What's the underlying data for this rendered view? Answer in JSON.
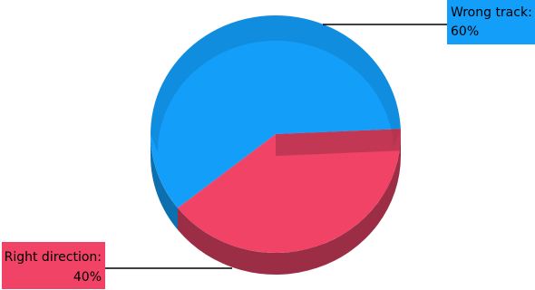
{
  "chart_data": {
    "type": "pie",
    "title": "",
    "slices": [
      {
        "label": "Wrong track:",
        "value": 60,
        "value_label": "60%",
        "color": "#139EF9",
        "side_color": "#0E6FAE"
      },
      {
        "label": "Right direction:",
        "value": 40,
        "value_label": "40%",
        "color": "#F04366",
        "side_color": "#9B2E45"
      }
    ],
    "legend": "none",
    "three_d": true
  }
}
